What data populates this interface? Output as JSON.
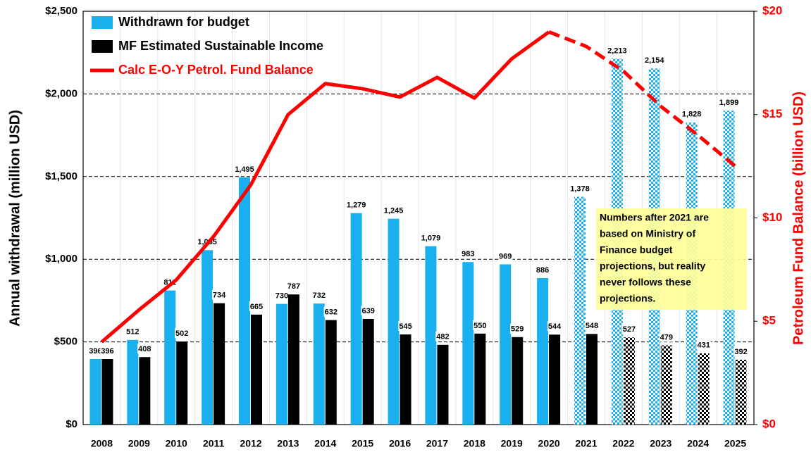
{
  "chart_data": {
    "type": "bar_line",
    "y_label": "Annual withdrawal (million USD)",
    "y2_label": "Petroleum Fund Balance  (billion USD)",
    "categories": [
      "2008",
      "2009",
      "2010",
      "2011",
      "2012",
      "2013",
      "2014",
      "2015",
      "2016",
      "2017",
      "2018",
      "2019",
      "2020",
      "2021",
      "2022",
      "2023",
      "2024",
      "2025"
    ],
    "series": [
      {
        "name": "Withdrawn for budget",
        "color": "#1ab0f0",
        "type": "bar",
        "patterned_from": "2021",
        "values": [
          396,
          512,
          811,
          1055,
          1495,
          730,
          732,
          1279,
          1245,
          1079,
          983,
          969,
          886,
          1378,
          2213,
          2154,
          1828,
          1899
        ],
        "value_labels": [
          "396",
          "512",
          "811",
          "1,055",
          "1,495",
          "730",
          "732",
          "1,279",
          "1,245",
          "1,079",
          "983",
          "969",
          "886",
          "1,378",
          "2,213",
          "2,154",
          "1,828",
          "1,899"
        ]
      },
      {
        "name": "MF Estimated Sustainable Income",
        "color": "#000000",
        "type": "bar",
        "patterned_from": "2022",
        "values": [
          396,
          408,
          502,
          734,
          665,
          787,
          632,
          639,
          545,
          482,
          550,
          529,
          544,
          548,
          527,
          479,
          431,
          392
        ]
      },
      {
        "name": "Calc E-O-Y Petrol. Fund Balance",
        "color": "#ff0000",
        "type": "line",
        "axis": "y2",
        "dashed_from": "2020",
        "values": [
          4.0,
          5.55,
          7.0,
          9.1,
          11.6,
          15.0,
          16.5,
          16.25,
          15.85,
          16.8,
          15.8,
          17.7,
          19.0,
          18.3,
          17.1,
          15.4,
          14.0,
          12.5
        ]
      }
    ],
    "ylim": [
      0,
      2500
    ],
    "yticks": [
      {
        "value": 0,
        "label": "$0"
      },
      {
        "value": 500,
        "label": "$500"
      },
      {
        "value": 1000,
        "label": "$1,000"
      },
      {
        "value": 1500,
        "label": "$1,500"
      },
      {
        "value": 2000,
        "label": "$2,000"
      },
      {
        "value": 2500,
        "label": "$2,500"
      }
    ],
    "y2lim": [
      0,
      20
    ],
    "y2ticks": [
      {
        "value": 0,
        "label": "$0"
      },
      {
        "value": 5,
        "label": "$5"
      },
      {
        "value": 10,
        "label": "$10"
      },
      {
        "value": 15,
        "label": "$15"
      },
      {
        "value": 20,
        "label": "$20"
      }
    ],
    "grid": true,
    "legend": "upper left",
    "annotation": [
      "Numbers after 2021 are",
      "based on Ministry of",
      "Finance budget",
      "projections, but reality",
      "never follows these",
      "projections."
    ]
  }
}
